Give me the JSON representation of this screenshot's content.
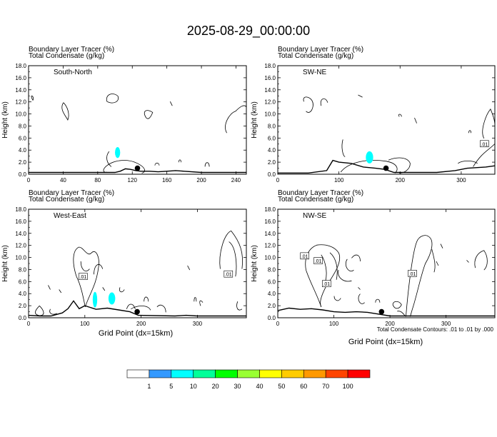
{
  "title": "2025-08-29_00:00:00",
  "panel_header": {
    "line1": "Boundary Layer Tracer   (%)",
    "line2": "Total Condensate   (g/kg)"
  },
  "ylabel": "Height (km)",
  "xlabel": "Grid Point (dx=15km)",
  "contour_note": "Total Condensate Contours: .01 to .01 by .000",
  "y_ticks": [
    "0.0",
    "2.0",
    "4.0",
    "6.0",
    "8.0",
    "10.0",
    "12.0",
    "14.0",
    "16.0",
    "18.0"
  ],
  "colorbar": {
    "labels": [
      "1",
      "5",
      "10",
      "20",
      "30",
      "40",
      "50",
      "60",
      "70",
      "100"
    ],
    "colors": [
      "#ffffff",
      "#3399ff",
      "#00ffff",
      "#00ff99",
      "#00ff00",
      "#99ff33",
      "#ffff00",
      "#ffcc00",
      "#ff9900",
      "#ff4400",
      "#ff0000"
    ]
  },
  "chart_data": [
    {
      "type": "contour",
      "cross_section": "South-North",
      "title": "South-North",
      "xlim": [
        0,
        252
      ],
      "ylim": [
        0,
        18
      ],
      "x_ticks": [
        "0",
        "40",
        "80",
        "120",
        "160",
        "200",
        "240"
      ],
      "x_tick_values": [
        0,
        40,
        80,
        120,
        160,
        200,
        240
      ],
      "terrain": [
        [
          0,
          0.3
        ],
        [
          70,
          0.3
        ],
        [
          100,
          0.3
        ],
        [
          106,
          0.5
        ],
        [
          112,
          0.9
        ],
        [
          118,
          0.8
        ],
        [
          124,
          0.6
        ],
        [
          130,
          0.5
        ],
        [
          140,
          0.5
        ],
        [
          150,
          0.4
        ],
        [
          160,
          0.5
        ],
        [
          170,
          0.6
        ],
        [
          180,
          0.5
        ],
        [
          200,
          0.3
        ],
        [
          252,
          0.3
        ]
      ],
      "tracer_blobs": [
        {
          "x": 103,
          "y": 3.6,
          "rx": 3,
          "ry": 0.9,
          "level": 5
        }
      ],
      "marker": {
        "x": 126,
        "y": 1.0
      },
      "contour_labels": []
    },
    {
      "type": "contour",
      "cross_section": "SW-NE",
      "title": "SW-NE",
      "xlim": [
        0,
        355
      ],
      "ylim": [
        0,
        18
      ],
      "x_ticks": [
        "0",
        "100",
        "200",
        "300"
      ],
      "x_tick_values": [
        0,
        100,
        200,
        300
      ],
      "terrain": [
        [
          0,
          0.2
        ],
        [
          50,
          0.2
        ],
        [
          80,
          0.6
        ],
        [
          90,
          2.3
        ],
        [
          100,
          2.0
        ],
        [
          120,
          1.8
        ],
        [
          140,
          1.2
        ],
        [
          160,
          1.0
        ],
        [
          175,
          0.8
        ],
        [
          190,
          0.3
        ],
        [
          260,
          0.3
        ],
        [
          290,
          0.6
        ],
        [
          310,
          1.0
        ],
        [
          340,
          1.2
        ],
        [
          355,
          1.4
        ]
      ],
      "tracer_blobs": [
        {
          "x": 150,
          "y": 2.8,
          "rx": 6,
          "ry": 1.0,
          "level": 5
        }
      ],
      "marker": {
        "x": 177,
        "y": 1.0
      },
      "contour_labels": [
        {
          "x": 338,
          "y": 5.0,
          "text": ".01"
        }
      ]
    },
    {
      "type": "contour",
      "cross_section": "West-East",
      "title": "West-East",
      "xlim": [
        0,
        387
      ],
      "ylim": [
        0,
        18
      ],
      "x_ticks": [
        "0",
        "100",
        "200",
        "300"
      ],
      "x_tick_values": [
        0,
        100,
        200,
        300
      ],
      "terrain": [
        [
          0,
          0.4
        ],
        [
          20,
          0.3
        ],
        [
          40,
          0.3
        ],
        [
          60,
          0.8
        ],
        [
          70,
          1.5
        ],
        [
          80,
          2.8
        ],
        [
          90,
          1.5
        ],
        [
          100,
          2.0
        ],
        [
          120,
          1.4
        ],
        [
          140,
          1.6
        ],
        [
          160,
          1.3
        ],
        [
          180,
          1.0
        ],
        [
          195,
          0.4
        ],
        [
          260,
          0.3
        ],
        [
          280,
          0.4
        ],
        [
          300,
          0.3
        ],
        [
          387,
          0.3
        ]
      ],
      "tracer_blobs": [
        {
          "x": 118,
          "y": 3.0,
          "rx": 4,
          "ry": 1.3,
          "level": 5
        },
        {
          "x": 148,
          "y": 3.2,
          "rx": 6,
          "ry": 1.0,
          "level": 5
        }
      ],
      "marker": {
        "x": 193,
        "y": 1.0
      },
      "contour_labels": [
        {
          "x": 97,
          "y": 6.8,
          "text": ".01"
        },
        {
          "x": 355,
          "y": 7.2,
          "text": ".01"
        }
      ]
    },
    {
      "type": "contour",
      "cross_section": "NW-SE",
      "title": "NW-SE",
      "xlim": [
        0,
        387
      ],
      "ylim": [
        0,
        18
      ],
      "x_ticks": [
        "0",
        "100",
        "200",
        "300"
      ],
      "x_tick_values": [
        0,
        100,
        200,
        300
      ],
      "terrain": [
        [
          0,
          1.2
        ],
        [
          20,
          1.6
        ],
        [
          40,
          1.4
        ],
        [
          60,
          1.5
        ],
        [
          80,
          1.3
        ],
        [
          100,
          1.0
        ],
        [
          120,
          0.9
        ],
        [
          140,
          1.0
        ],
        [
          160,
          0.9
        ],
        [
          180,
          0.6
        ],
        [
          200,
          0.3
        ],
        [
          387,
          0.3
        ]
      ],
      "tracer_blobs": [],
      "marker": {
        "x": 185,
        "y": 1.0
      },
      "contour_labels": [
        {
          "x": 48,
          "y": 10.2,
          "text": ".01"
        },
        {
          "x": 72,
          "y": 9.4,
          "text": ".01"
        },
        {
          "x": 87,
          "y": 5.6,
          "text": ".01"
        },
        {
          "x": 240,
          "y": 7.3,
          "text": ".01"
        }
      ]
    }
  ]
}
